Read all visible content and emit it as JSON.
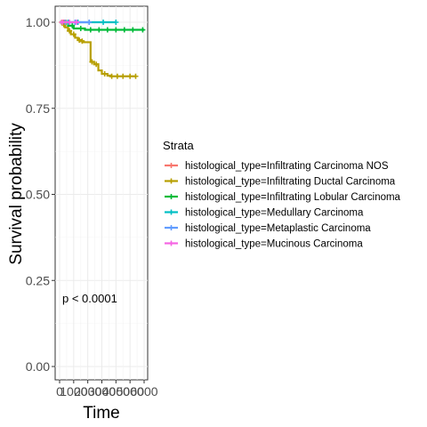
{
  "chart_data": {
    "type": "line",
    "subtype": "kaplan-meier",
    "ylabel": "Survival probability",
    "xlabel": "Time",
    "ylim": [
      0,
      1
    ],
    "xlim": [
      0,
      6000
    ],
    "y_ticks": [
      "0.00",
      "0.25",
      "0.50",
      "0.75",
      "1.00"
    ],
    "y_tick_values": [
      0,
      0.25,
      0.5,
      0.75,
      1.0
    ],
    "x_ticks": [
      "0",
      "1000",
      "2000",
      "3000",
      "4000",
      "5000",
      "6000"
    ],
    "x_tick_values": [
      0,
      1000,
      2000,
      3000,
      4000,
      5000,
      6000
    ],
    "annotation": "p < 0.0001",
    "legend_title": "Strata",
    "legend_position": "right",
    "grid": true,
    "series": [
      {
        "name": "histological_type=Infiltrating Carcinoma NOS",
        "color": "#F8766D",
        "x": [
          0,
          500
        ],
        "y": [
          1.0,
          1.0
        ],
        "censor_x": [
          150,
          300,
          450
        ]
      },
      {
        "name": "histological_type=Infiltrating Ductal Carcinoma",
        "color": "#B79F00",
        "x": [
          0,
          200,
          400,
          600,
          800,
          1100,
          1300,
          1500,
          1700,
          2200,
          2450,
          2750,
          3000,
          3400,
          3600,
          5400
        ],
        "y": [
          1.0,
          0.993,
          0.985,
          0.975,
          0.965,
          0.955,
          0.948,
          0.945,
          0.942,
          0.885,
          0.878,
          0.86,
          0.85,
          0.845,
          0.843,
          0.843
        ],
        "censor_x": [
          300,
          700,
          1000,
          1400,
          1600,
          2300,
          2600,
          3200,
          3700,
          4100,
          4500,
          5000,
          5400
        ]
      },
      {
        "name": "histological_type=Infiltrating Lobular Carcinoma",
        "color": "#00BA38",
        "x": [
          0,
          600,
          1000,
          1800,
          6000
        ],
        "y": [
          1.0,
          0.99,
          0.982,
          0.978,
          0.978
        ],
        "censor_x": [
          400,
          900,
          1500,
          2200,
          2800,
          3400,
          4000,
          4600,
          5200,
          5900
        ]
      },
      {
        "name": "histological_type=Medullary Carcinoma",
        "color": "#00BFC4",
        "x": [
          0,
          4000
        ],
        "y": [
          1.0,
          1.0
        ],
        "censor_x": [
          600,
          1300,
          2100,
          3100,
          4000
        ]
      },
      {
        "name": "histological_type=Metaplastic Carcinoma",
        "color": "#619CFF",
        "x": [
          0,
          2100
        ],
        "y": [
          1.0,
          1.0
        ],
        "censor_x": [
          400,
          1100,
          2100
        ]
      },
      {
        "name": "histological_type=Mucinous Carcinoma",
        "color": "#F564E3",
        "x": [
          0,
          1400
        ],
        "y": [
          1.0,
          1.0
        ],
        "censor_x": [
          200,
          700,
          1200
        ]
      }
    ]
  }
}
